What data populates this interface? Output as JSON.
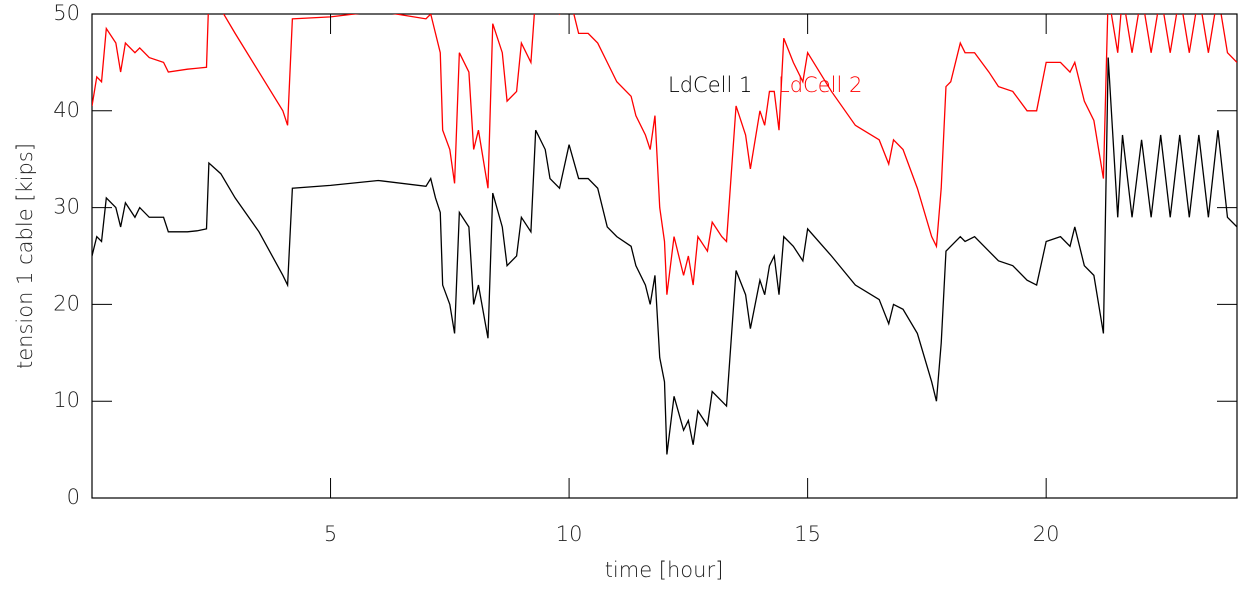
{
  "chart_data": {
    "type": "line",
    "x_label": "time [hour]",
    "y_label": "tension 1 cable [kips]",
    "x": [
      0,
      0.1,
      0.2,
      0.3,
      0.5,
      0.6,
      0.7,
      0.9,
      1.0,
      1.2,
      1.5,
      1.6,
      2.0,
      2.2,
      2.4,
      2.45,
      2.7,
      3.0,
      3.5,
      4.0,
      4.1,
      4.2,
      5.0,
      6.0,
      7.0,
      7.1,
      7.2,
      7.3,
      7.35,
      7.5,
      7.6,
      7.7,
      7.9,
      8.0,
      8.1,
      8.3,
      8.4,
      8.6,
      8.7,
      8.9,
      9.0,
      9.2,
      9.3,
      9.5,
      9.6,
      9.8,
      10.0,
      10.2,
      10.4,
      10.6,
      10.8,
      11.0,
      11.3,
      11.4,
      11.6,
      11.7,
      11.8,
      11.9,
      12.0,
      12.05,
      12.2,
      12.4,
      12.5,
      12.6,
      12.7,
      12.9,
      13.0,
      13.2,
      13.3,
      13.5,
      13.7,
      13.8,
      14.0,
      14.1,
      14.2,
      14.3,
      14.4,
      14.5,
      14.7,
      14.9,
      15.0,
      15.5,
      16.0,
      16.5,
      16.7,
      16.8,
      17.0,
      17.3,
      17.6,
      17.7,
      17.8,
      17.9,
      18.0,
      18.2,
      18.3,
      18.5,
      18.8,
      19.0,
      19.3,
      19.6,
      19.8,
      20.0,
      20.3,
      20.5,
      20.6,
      20.8,
      21.0,
      21.2,
      21.3,
      21.5,
      21.6,
      21.8,
      22.0,
      22.2,
      22.4,
      22.6,
      22.8,
      23.0,
      23.2,
      23.4,
      23.6,
      23.8,
      24.0
    ],
    "series": [
      {
        "name": "LdCell 1",
        "color": "#000000",
        "values": [
          25,
          27,
          26.5,
          31,
          30,
          28,
          30.5,
          29,
          30,
          29,
          29,
          27.5,
          27.5,
          27.6,
          27.8,
          34.6,
          33.5,
          31,
          27.5,
          23,
          22,
          32,
          32.3,
          32.8,
          32.2,
          33,
          31,
          29.5,
          22,
          20,
          17,
          29.5,
          28,
          20,
          22,
          16.5,
          31.5,
          28,
          24,
          25,
          29,
          27.5,
          38,
          36,
          33,
          32,
          36.5,
          33,
          33,
          32,
          28,
          27,
          26,
          24,
          22,
          20,
          23,
          14.5,
          12,
          4.5,
          10.5,
          7,
          8,
          5.5,
          9,
          7.5,
          11,
          10,
          9.5,
          23.5,
          21,
          17.5,
          22.5,
          21,
          24,
          25,
          21,
          27,
          26,
          24.5,
          27.8,
          25,
          22,
          20.5,
          18,
          20,
          19.5,
          17,
          12,
          10,
          16,
          25.5,
          26,
          27,
          26.5,
          27,
          25.5,
          24.5,
          24,
          22.5,
          22,
          26.5,
          27,
          26,
          28,
          24,
          23,
          17,
          45.5,
          29,
          37.5,
          29,
          37,
          29,
          37.5,
          29,
          37.5,
          29,
          37.5,
          29,
          38,
          29,
          28
        ]
      },
      {
        "name": "LdCell 2",
        "color": "#ff0000",
        "values": [
          40.5,
          43.5,
          43,
          48.5,
          47,
          44,
          47,
          46,
          46.5,
          45.5,
          45,
          44,
          44.3,
          44.4,
          44.5,
          52,
          50.5,
          48,
          44,
          40,
          38.5,
          49.5,
          49.7,
          50.3,
          49.5,
          50,
          48,
          46,
          38,
          36,
          32.5,
          46,
          44,
          36,
          38,
          32,
          49,
          46,
          41,
          42,
          47,
          45,
          52,
          51,
          51,
          50,
          52,
          48,
          48,
          47,
          45,
          43,
          41.5,
          39.5,
          37.5,
          36,
          39.5,
          30,
          26.5,
          21,
          27,
          23,
          25,
          22,
          27,
          25.5,
          28.5,
          27,
          26.5,
          40.5,
          37.5,
          34,
          40,
          38.5,
          42,
          42,
          38,
          47.5,
          45,
          43,
          46,
          42,
          38.5,
          37,
          34.5,
          37,
          36,
          32,
          27,
          26,
          32,
          42.5,
          43,
          47,
          46,
          46,
          44,
          42.5,
          42,
          40,
          40,
          45,
          45,
          44,
          45,
          41,
          39,
          33,
          52,
          46,
          52,
          46,
          52,
          46,
          52,
          46,
          52,
          46,
          52,
          46,
          52,
          46,
          45
        ]
      }
    ],
    "xlim": [
      0,
      24
    ],
    "ylim": [
      0,
      50
    ],
    "xticks": [
      5,
      10,
      15,
      20
    ],
    "yticks": [
      0,
      10,
      20,
      30,
      40,
      50
    ]
  }
}
